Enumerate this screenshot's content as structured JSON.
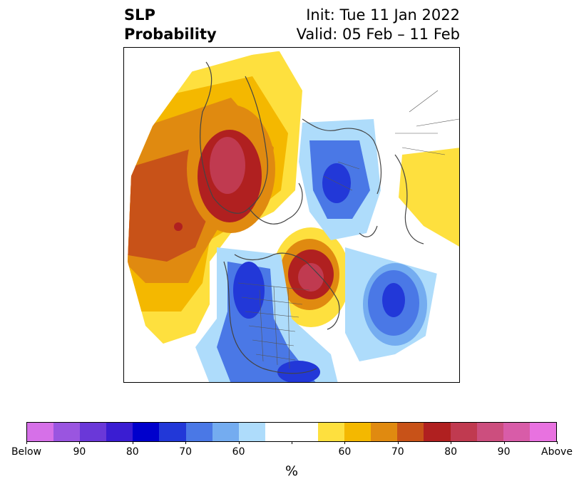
{
  "header": {
    "title_line1": "SLP",
    "title_line2": "Probability",
    "init_label": "Init: Tue 11 Jan 2022",
    "valid_label": "Valid: 05 Feb – 11 Feb"
  },
  "map": {
    "projection": "north-polar-stereographic",
    "features": [
      "coastlines",
      "country-borders",
      "us-state-borders"
    ]
  },
  "colorbar": {
    "colors": [
      "#d670e8",
      "#9a55e0",
      "#6a38d8",
      "#3a1dd2",
      "#0000cc",
      "#2238d8",
      "#4a78e6",
      "#74acf0",
      "#aedcfb",
      "#ffffff",
      "#ffffff",
      "#fee03e",
      "#f4b800",
      "#e08a10",
      "#c85218",
      "#b02020",
      "#c03a50",
      "#cc4e7e",
      "#d85ca8",
      "#e872e0"
    ],
    "tick_labels": [
      "Below",
      "90",
      "80",
      "70",
      "60",
      "",
      "60",
      "70",
      "80",
      "90",
      "Above"
    ],
    "unit_label": "%"
  }
}
